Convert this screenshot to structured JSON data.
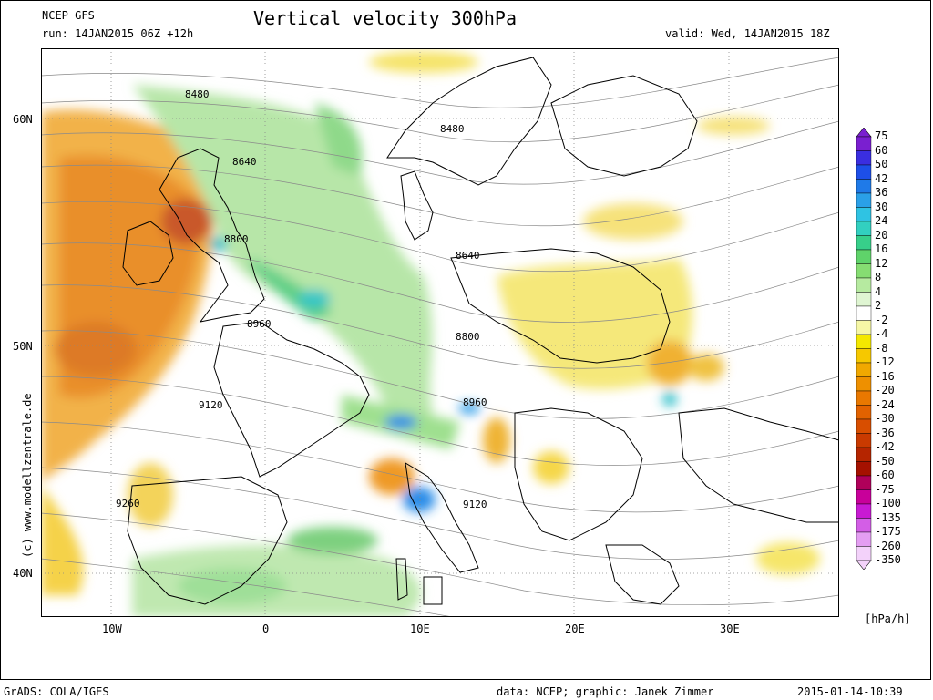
{
  "header": {
    "model": "NCEP GFS",
    "run": "run: 14JAN2015 06Z +12h",
    "title": "Vertical velocity 300hPa",
    "valid": "valid: Wed, 14JAN2015 18Z"
  },
  "map": {
    "lat_labels": [
      "60N",
      "50N",
      "40N"
    ],
    "lon_labels": [
      "10W",
      "0",
      "10E",
      "20E",
      "30E"
    ],
    "contour_labels": [
      "8480",
      "8480",
      "8640",
      "8800",
      "8640",
      "8960",
      "8800",
      "8960",
      "9120",
      "9120",
      "9260"
    ],
    "watermark": "(c) www.modellzentrale.de"
  },
  "colorbar": {
    "labels": [
      "75",
      "60",
      "50",
      "42",
      "36",
      "30",
      "24",
      "20",
      "16",
      "12",
      "8",
      "4",
      "2",
      "-2",
      "-4",
      "-8",
      "-12",
      "-16",
      "-20",
      "-24",
      "-30",
      "-36",
      "-42",
      "-50",
      "-60",
      "-75",
      "-100",
      "-135",
      "-175",
      "-260",
      "-350"
    ],
    "colors": [
      "#7a1fd0",
      "#3a2ee0",
      "#1d4fe8",
      "#1f7ae8",
      "#2aa0e8",
      "#2fc3e3",
      "#32d0c0",
      "#37cf8a",
      "#5fd36a",
      "#86dd72",
      "#b6eaa0",
      "#dff5d2",
      "#ffffff",
      "#f6f7a6",
      "#f4e800",
      "#f6c800",
      "#f0a800",
      "#ee9000",
      "#e97800",
      "#e26200",
      "#d84e00",
      "#c93a00",
      "#b52500",
      "#a51100",
      "#b0005a",
      "#c8009a",
      "#c81ad3",
      "#d35ee6",
      "#e49ef2",
      "#f3d2fa"
    ],
    "unit": "[hPa/h]"
  },
  "footer": {
    "left": "GrADS: COLA/IGES",
    "center": "data: NCEP; graphic: Janek Zimmer",
    "right": "2015-01-14-10:39"
  }
}
